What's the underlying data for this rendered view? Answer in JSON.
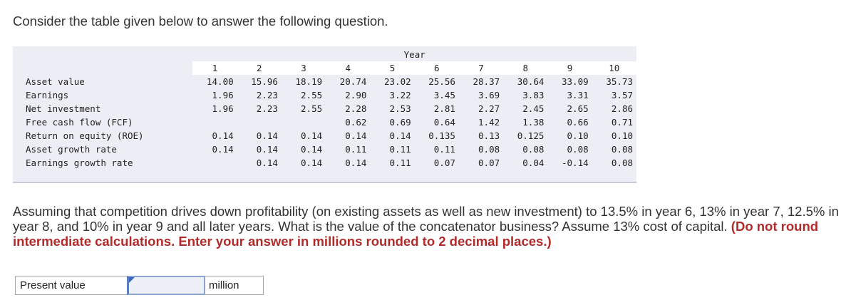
{
  "intro_text": "Consider the table given below to answer the following question.",
  "table": {
    "header_label": "Year",
    "years": [
      "1",
      "2",
      "3",
      "4",
      "5",
      "6",
      "7",
      "8",
      "9",
      "10"
    ],
    "rows": [
      {
        "label": "Asset value",
        "values": [
          "14.00",
          "15.96",
          "18.19",
          "20.74",
          "23.02",
          "25.56",
          "28.37",
          "30.64",
          "33.09",
          "35.73"
        ]
      },
      {
        "label": "Earnings",
        "values": [
          "1.96",
          "2.23",
          "2.55",
          "2.90",
          "3.22",
          "3.45",
          "3.69",
          "3.83",
          "3.31",
          "3.57"
        ]
      },
      {
        "label": "Net investment",
        "values": [
          "1.96",
          "2.23",
          "2.55",
          "2.28",
          "2.53",
          "2.81",
          "2.27",
          "2.45",
          "2.65",
          "2.86"
        ]
      },
      {
        "label": "Free cash flow (FCF)",
        "values": [
          "",
          "",
          "",
          "0.62",
          "0.69",
          "0.64",
          "1.42",
          "1.38",
          "0.66",
          "0.71"
        ]
      },
      {
        "label": "Return on equity (ROE)",
        "values": [
          "0.14",
          "0.14",
          "0.14",
          "0.14",
          "0.14",
          "0.135",
          "0.13",
          "0.125",
          "0.10",
          "0.10"
        ]
      },
      {
        "label": "Asset growth rate",
        "values": [
          "0.14",
          "0.14",
          "0.14",
          "0.11",
          "0.11",
          "0.11",
          "0.08",
          "0.08",
          "0.08",
          "0.08"
        ]
      },
      {
        "label": "Earnings growth rate",
        "values": [
          "",
          "0.14",
          "0.14",
          "0.14",
          "0.11",
          "0.07",
          "0.07",
          "0.04",
          "-0.14",
          "0.08"
        ]
      }
    ]
  },
  "question": {
    "text": "Assuming that competition drives down profitability (on existing assets as well as new investment) to 13.5% in year 6, 13% in year 7, 12.5% in year 8, and 10% in year 9 and all later years. What is the value of the concatenator business? Assume 13% cost of capital. ",
    "emphasis": "(Do not round intermediate calculations. Enter your answer in millions rounded to 2 decimal places.)"
  },
  "answer": {
    "label": "Present value",
    "value": "",
    "unit": "million"
  },
  "colors": {
    "table_background": "#edeef5",
    "emphasis_text": "#b32a2a",
    "input_border": "#5b7fc4"
  }
}
